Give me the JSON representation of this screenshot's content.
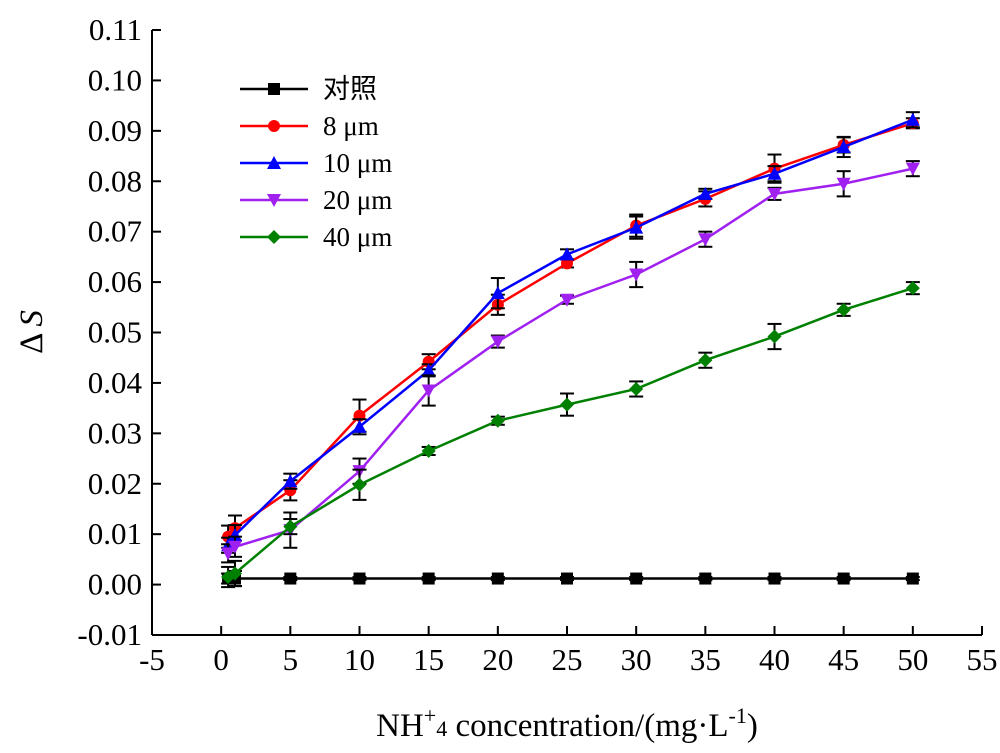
{
  "chart_data": {
    "type": "line",
    "ylabel": {
      "main": "Δ",
      "italic": "S"
    },
    "xlabel": {
      "prefix": "NH",
      "sup": "+",
      "sub": "4",
      "middle": " concentration/(mg·L",
      "exp": "-1",
      "suffix": ")"
    },
    "xlim": [
      -5,
      55
    ],
    "ylim": [
      -0.01,
      0.11
    ],
    "x_ticks": [
      "-5",
      "0",
      "5",
      "10",
      "15",
      "20",
      "25",
      "30",
      "35",
      "40",
      "45",
      "50",
      "55"
    ],
    "y_ticks": [
      "-0.01",
      "0.00",
      "0.01",
      "0.02",
      "0.03",
      "0.04",
      "0.05",
      "0.06",
      "0.07",
      "0.08",
      "0.09",
      "0.10",
      "0.11"
    ],
    "legend_position": "top-left",
    "x": [
      0.5,
      1,
      5,
      10,
      15,
      20,
      25,
      30,
      35,
      40,
      45,
      50
    ],
    "series": [
      {
        "name": "对照",
        "color": "#000000",
        "marker": "square",
        "values": [
          0.0012,
          0.0012,
          0.0012,
          0.0012,
          0.0012,
          0.0012,
          0.0012,
          0.0012,
          0.0012,
          0.0012,
          0.0012,
          0.0012
        ],
        "errors": [
          0.001,
          0.0015,
          0.0003,
          0.0003,
          0.0003,
          0.0003,
          0.0003,
          0.0003,
          0.0003,
          0.0003,
          0.0003,
          0.0003
        ]
      },
      {
        "name": "8 μm",
        "color": "#ff0000",
        "marker": "circle",
        "values": [
          0.0095,
          0.0112,
          0.0187,
          0.0335,
          0.0442,
          0.0555,
          0.0637,
          0.0712,
          0.0765,
          0.0825,
          0.0872,
          0.0915
        ],
        "errors": [
          0.0022,
          0.0025,
          0.002,
          0.0032,
          0.0015,
          0.002,
          0.0008,
          0.0022,
          0.0015,
          0.0028,
          0.0015,
          0.001
        ]
      },
      {
        "name": "10 μm",
        "color": "#0000ff",
        "marker": "triangle-up",
        "values": [
          0.0078,
          0.0098,
          0.0205,
          0.0313,
          0.0425,
          0.0578,
          0.0655,
          0.0708,
          0.0775,
          0.0815,
          0.0868,
          0.0922
        ],
        "errors": [
          0.0015,
          0.002,
          0.0015,
          0.0015,
          0.0012,
          0.003,
          0.001,
          0.0022,
          0.001,
          0.0015,
          0.002,
          0.0015
        ]
      },
      {
        "name": "20 μm",
        "color": "#a020f0",
        "marker": "triangle-down",
        "values": [
          0.0062,
          0.0075,
          0.0108,
          0.0225,
          0.0385,
          0.0482,
          0.0565,
          0.0615,
          0.0685,
          0.0775,
          0.0795,
          0.0825
        ],
        "errors": [
          0.0018,
          0.002,
          0.0035,
          0.0025,
          0.003,
          0.0012,
          0.0008,
          0.0025,
          0.0015,
          0.0012,
          0.0025,
          0.0015
        ]
      },
      {
        "name": "40 μm",
        "color": "#008000",
        "marker": "diamond",
        "values": [
          0.0015,
          0.0022,
          0.0115,
          0.0198,
          0.0265,
          0.0325,
          0.0357,
          0.0388,
          0.0445,
          0.0492,
          0.0545,
          0.0588
        ],
        "errors": [
          0.002,
          0.0025,
          0.0015,
          0.003,
          0.0008,
          0.0008,
          0.0022,
          0.0015,
          0.0015,
          0.0025,
          0.0012,
          0.0012
        ]
      }
    ]
  }
}
